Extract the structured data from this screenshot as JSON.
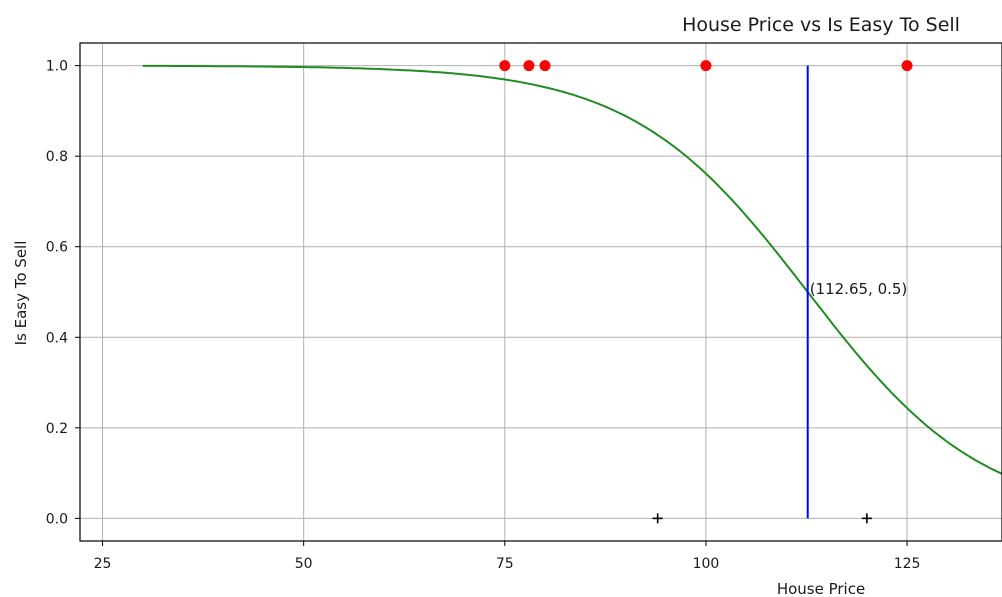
{
  "chart_data": {
    "type": "scatter",
    "title": "House Price vs Is Easy To Sell",
    "xlabel": "House Price",
    "ylabel": "Is Easy To Sell",
    "xlim": [
      22.2,
      136.8
    ],
    "ylim": [
      -0.05,
      1.05
    ],
    "xticks": [
      25,
      50,
      75,
      100,
      125
    ],
    "yticks": [
      0.0,
      0.2,
      0.4,
      0.6,
      0.8,
      1.0
    ],
    "xtick_labels": [
      "25",
      "50",
      "75",
      "100",
      "125"
    ],
    "ytick_labels": [
      "0.0",
      "0.2",
      "0.4",
      "0.6",
      "0.8",
      "1.0"
    ],
    "grid": true,
    "series": [
      {
        "kind": "scatter",
        "marker": "circle",
        "color": "#ff0000",
        "points": [
          [
            75,
            1
          ],
          [
            78,
            1
          ],
          [
            80,
            1
          ],
          [
            100,
            1
          ],
          [
            125,
            1
          ]
        ]
      },
      {
        "kind": "scatter",
        "marker": "plus",
        "color": "#000000",
        "points": [
          [
            94,
            0
          ],
          [
            120,
            0
          ]
        ]
      },
      {
        "kind": "line",
        "color": "#228b22",
        "curve": "logistic",
        "midpoint": 112.65,
        "scale": 10.9,
        "x_range": [
          30,
          137
        ]
      },
      {
        "kind": "vline",
        "color": "#0000ff",
        "x": 112.65,
        "y_range": [
          0,
          1
        ]
      }
    ],
    "annotations": [
      {
        "text": "(112.65, 0.5)",
        "x": 112.65,
        "y": 0.5
      }
    ]
  }
}
